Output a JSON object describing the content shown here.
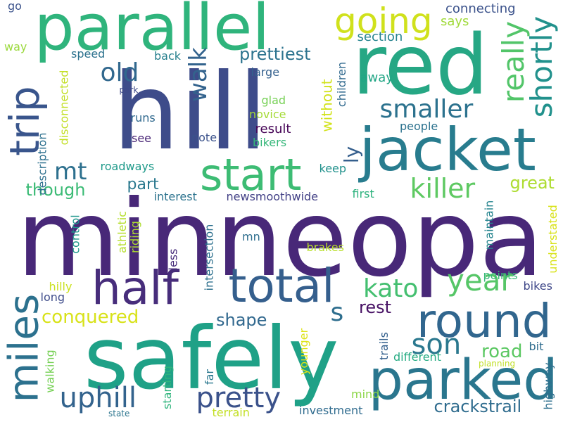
{
  "words": [
    {
      "text": "minneopa",
      "color": "#482878",
      "orientation": "horizontal"
    },
    {
      "text": "hill",
      "color": "#3e4c8a",
      "orientation": "horizontal"
    },
    {
      "text": "red",
      "color": "#26a784",
      "orientation": "horizontal"
    },
    {
      "text": "safely",
      "color": "#1fa187",
      "orientation": "horizontal"
    },
    {
      "text": "jacket",
      "color": "#287c8e",
      "orientation": "horizontal"
    },
    {
      "text": "parallel",
      "color": "#2fb47c",
      "orientation": "horizontal"
    },
    {
      "text": "parked",
      "color": "#2a768e",
      "orientation": "horizontal"
    },
    {
      "text": "round",
      "color": "#31668e",
      "orientation": "horizontal"
    },
    {
      "text": "total",
      "color": "#355f8d",
      "orientation": "horizontal"
    },
    {
      "text": "half",
      "color": "#472d7b",
      "orientation": "horizontal"
    },
    {
      "text": "start",
      "color": "#3dbc74",
      "orientation": "horizontal"
    },
    {
      "text": "miles",
      "color": "#2c718e",
      "orientation": "vertical"
    },
    {
      "text": "trip",
      "color": "#39558c",
      "orientation": "vertical"
    },
    {
      "text": "going",
      "color": "#d0e11c",
      "orientation": "horizontal"
    },
    {
      "text": "shortly",
      "color": "#21918c",
      "orientation": "vertical"
    },
    {
      "text": "really",
      "color": "#52c569",
      "orientation": "vertical"
    },
    {
      "text": "killer",
      "color": "#5ec962",
      "orientation": "horizontal"
    },
    {
      "text": "uphill",
      "color": "#33638d",
      "orientation": "horizontal"
    },
    {
      "text": "pretty",
      "color": "#3b528b",
      "orientation": "horizontal"
    },
    {
      "text": "son",
      "color": "#2a788e",
      "orientation": "horizontal"
    },
    {
      "text": "smaller",
      "color": "#2c728e",
      "orientation": "horizontal"
    },
    {
      "text": "year",
      "color": "#56c667",
      "orientation": "horizontal"
    },
    {
      "text": "kato",
      "color": "#44bf70",
      "orientation": "horizontal"
    },
    {
      "text": "walk",
      "color": "#33638d",
      "orientation": "vertical"
    },
    {
      "text": "old",
      "color": "#31688e",
      "orientation": "horizontal"
    },
    {
      "text": "mt",
      "color": "#2d708e",
      "orientation": "horizontal"
    },
    {
      "text": "s",
      "color": "#2e6e8e",
      "orientation": "horizontal"
    },
    {
      "text": "conquered",
      "color": "#d8e219",
      "orientation": "horizontal"
    },
    {
      "text": "crackstrail",
      "color": "#2f6c8e",
      "orientation": "horizontal"
    },
    {
      "text": "prettiest",
      "color": "#2c738e",
      "orientation": "horizontal"
    },
    {
      "text": "shape",
      "color": "#31688e",
      "orientation": "horizontal"
    },
    {
      "text": "road",
      "color": "#5cc863",
      "orientation": "horizontal"
    },
    {
      "text": "rest",
      "color": "#471164",
      "orientation": "horizontal"
    },
    {
      "text": "though",
      "color": "#3bbb75",
      "orientation": "horizontal"
    },
    {
      "text": "great",
      "color": "#addc30",
      "orientation": "horizontal"
    },
    {
      "text": "part",
      "color": "#2a788e",
      "orientation": "horizontal"
    },
    {
      "text": "without",
      "color": "#d2e21b",
      "orientation": "vertical"
    },
    {
      "text": "connecting",
      "color": "#3b528b",
      "orientation": "horizontal"
    },
    {
      "text": "section",
      "color": "#25838e",
      "orientation": "horizontal"
    },
    {
      "text": "says",
      "color": "#a0da39",
      "orientation": "horizontal"
    },
    {
      "text": "go",
      "color": "#3b528b",
      "orientation": "horizontal"
    },
    {
      "text": "way",
      "color": "#9bd93c",
      "orientation": "horizontal"
    },
    {
      "text": "speed",
      "color": "#2c728e",
      "orientation": "horizontal"
    },
    {
      "text": "back",
      "color": "#27808e",
      "orientation": "horizontal"
    },
    {
      "text": "large",
      "color": "#34608d",
      "orientation": "horizontal"
    },
    {
      "text": "away",
      "color": "#21a685",
      "orientation": "horizontal"
    },
    {
      "text": "children",
      "color": "#30698e",
      "orientation": "vertical"
    },
    {
      "text": "disconnected",
      "color": "#c2df23",
      "orientation": "vertical"
    },
    {
      "text": "park",
      "color": "#3e4989",
      "orientation": "horizontal"
    },
    {
      "text": "glad",
      "color": "#75d054",
      "orientation": "horizontal"
    },
    {
      "text": "novice",
      "color": "#a5db36",
      "orientation": "horizontal"
    },
    {
      "text": "runs",
      "color": "#30698e",
      "orientation": "horizontal"
    },
    {
      "text": "result",
      "color": "#440154",
      "orientation": "horizontal"
    },
    {
      "text": "people",
      "color": "#2c728e",
      "orientation": "horizontal"
    },
    {
      "text": "see",
      "color": "#482475",
      "orientation": "horizontal"
    },
    {
      "text": "note",
      "color": "#3b528b",
      "orientation": "horizontal"
    },
    {
      "text": "bikers",
      "color": "#35b779",
      "orientation": "horizontal"
    },
    {
      "text": "description",
      "color": "#2d708e",
      "orientation": "vertical"
    },
    {
      "text": "roadways",
      "color": "#1f9a8a",
      "orientation": "horizontal"
    },
    {
      "text": "keep",
      "color": "#21918c",
      "orientation": "horizontal"
    },
    {
      "text": "interest",
      "color": "#2c738e",
      "orientation": "horizontal"
    },
    {
      "text": "newsmoothwide",
      "color": "#424086",
      "orientation": "horizontal"
    },
    {
      "text": "first",
      "color": "#2db27d",
      "orientation": "horizontal"
    },
    {
      "text": "maintain",
      "color": "#25848e",
      "orientation": "vertical"
    },
    {
      "text": "control",
      "color": "#1f968b",
      "orientation": "vertical"
    },
    {
      "text": "athletic",
      "color": "#b5de2b",
      "orientation": "vertical"
    },
    {
      "text": "riding",
      "color": "#addc30",
      "orientation": "vertical"
    },
    {
      "text": "less",
      "color": "#472d7b",
      "orientation": "vertical"
    },
    {
      "text": "mn",
      "color": "#2e6e8e",
      "orientation": "horizontal"
    },
    {
      "text": "intersection",
      "color": "#2d708e",
      "orientation": "vertical"
    },
    {
      "text": "brakes",
      "color": "#b8de29",
      "orientation": "horizontal"
    },
    {
      "text": "understated",
      "color": "#d8e219",
      "orientation": "vertical"
    },
    {
      "text": "points",
      "color": "#37b878",
      "orientation": "horizontal"
    },
    {
      "text": "bikes",
      "color": "#3f4889",
      "orientation": "horizontal"
    },
    {
      "text": "hilly",
      "color": "#cae11f",
      "orientation": "horizontal"
    },
    {
      "text": "long",
      "color": "#3e4c8a",
      "orientation": "horizontal"
    },
    {
      "text": "bit",
      "color": "#2f6c8e",
      "orientation": "horizontal"
    },
    {
      "text": "trails",
      "color": "#34608d",
      "orientation": "vertical"
    },
    {
      "text": "different",
      "color": "#25ab82",
      "orientation": "horizontal"
    },
    {
      "text": "planning",
      "color": "#c0df25",
      "orientation": "horizontal"
    },
    {
      "text": "highway",
      "color": "#2e6f8e",
      "orientation": "vertical"
    },
    {
      "text": "younger",
      "color": "#dde318",
      "orientation": "vertical"
    },
    {
      "text": "walking",
      "color": "#75d054",
      "orientation": "vertical"
    },
    {
      "text": "far",
      "color": "#2a778e",
      "orientation": "vertical"
    },
    {
      "text": "mind",
      "color": "#8bd646",
      "orientation": "horizontal"
    },
    {
      "text": "starting",
      "color": "#2fb47c",
      "orientation": "vertical"
    },
    {
      "text": "terrain",
      "color": "#c2df23",
      "orientation": "horizontal"
    },
    {
      "text": "investment",
      "color": "#2f6b8e",
      "orientation": "horizontal"
    },
    {
      "text": "state",
      "color": "#2b758e",
      "orientation": "horizontal"
    },
    {
      "text": "ly",
      "color": "#355f8d",
      "orientation": "vertical"
    }
  ]
}
